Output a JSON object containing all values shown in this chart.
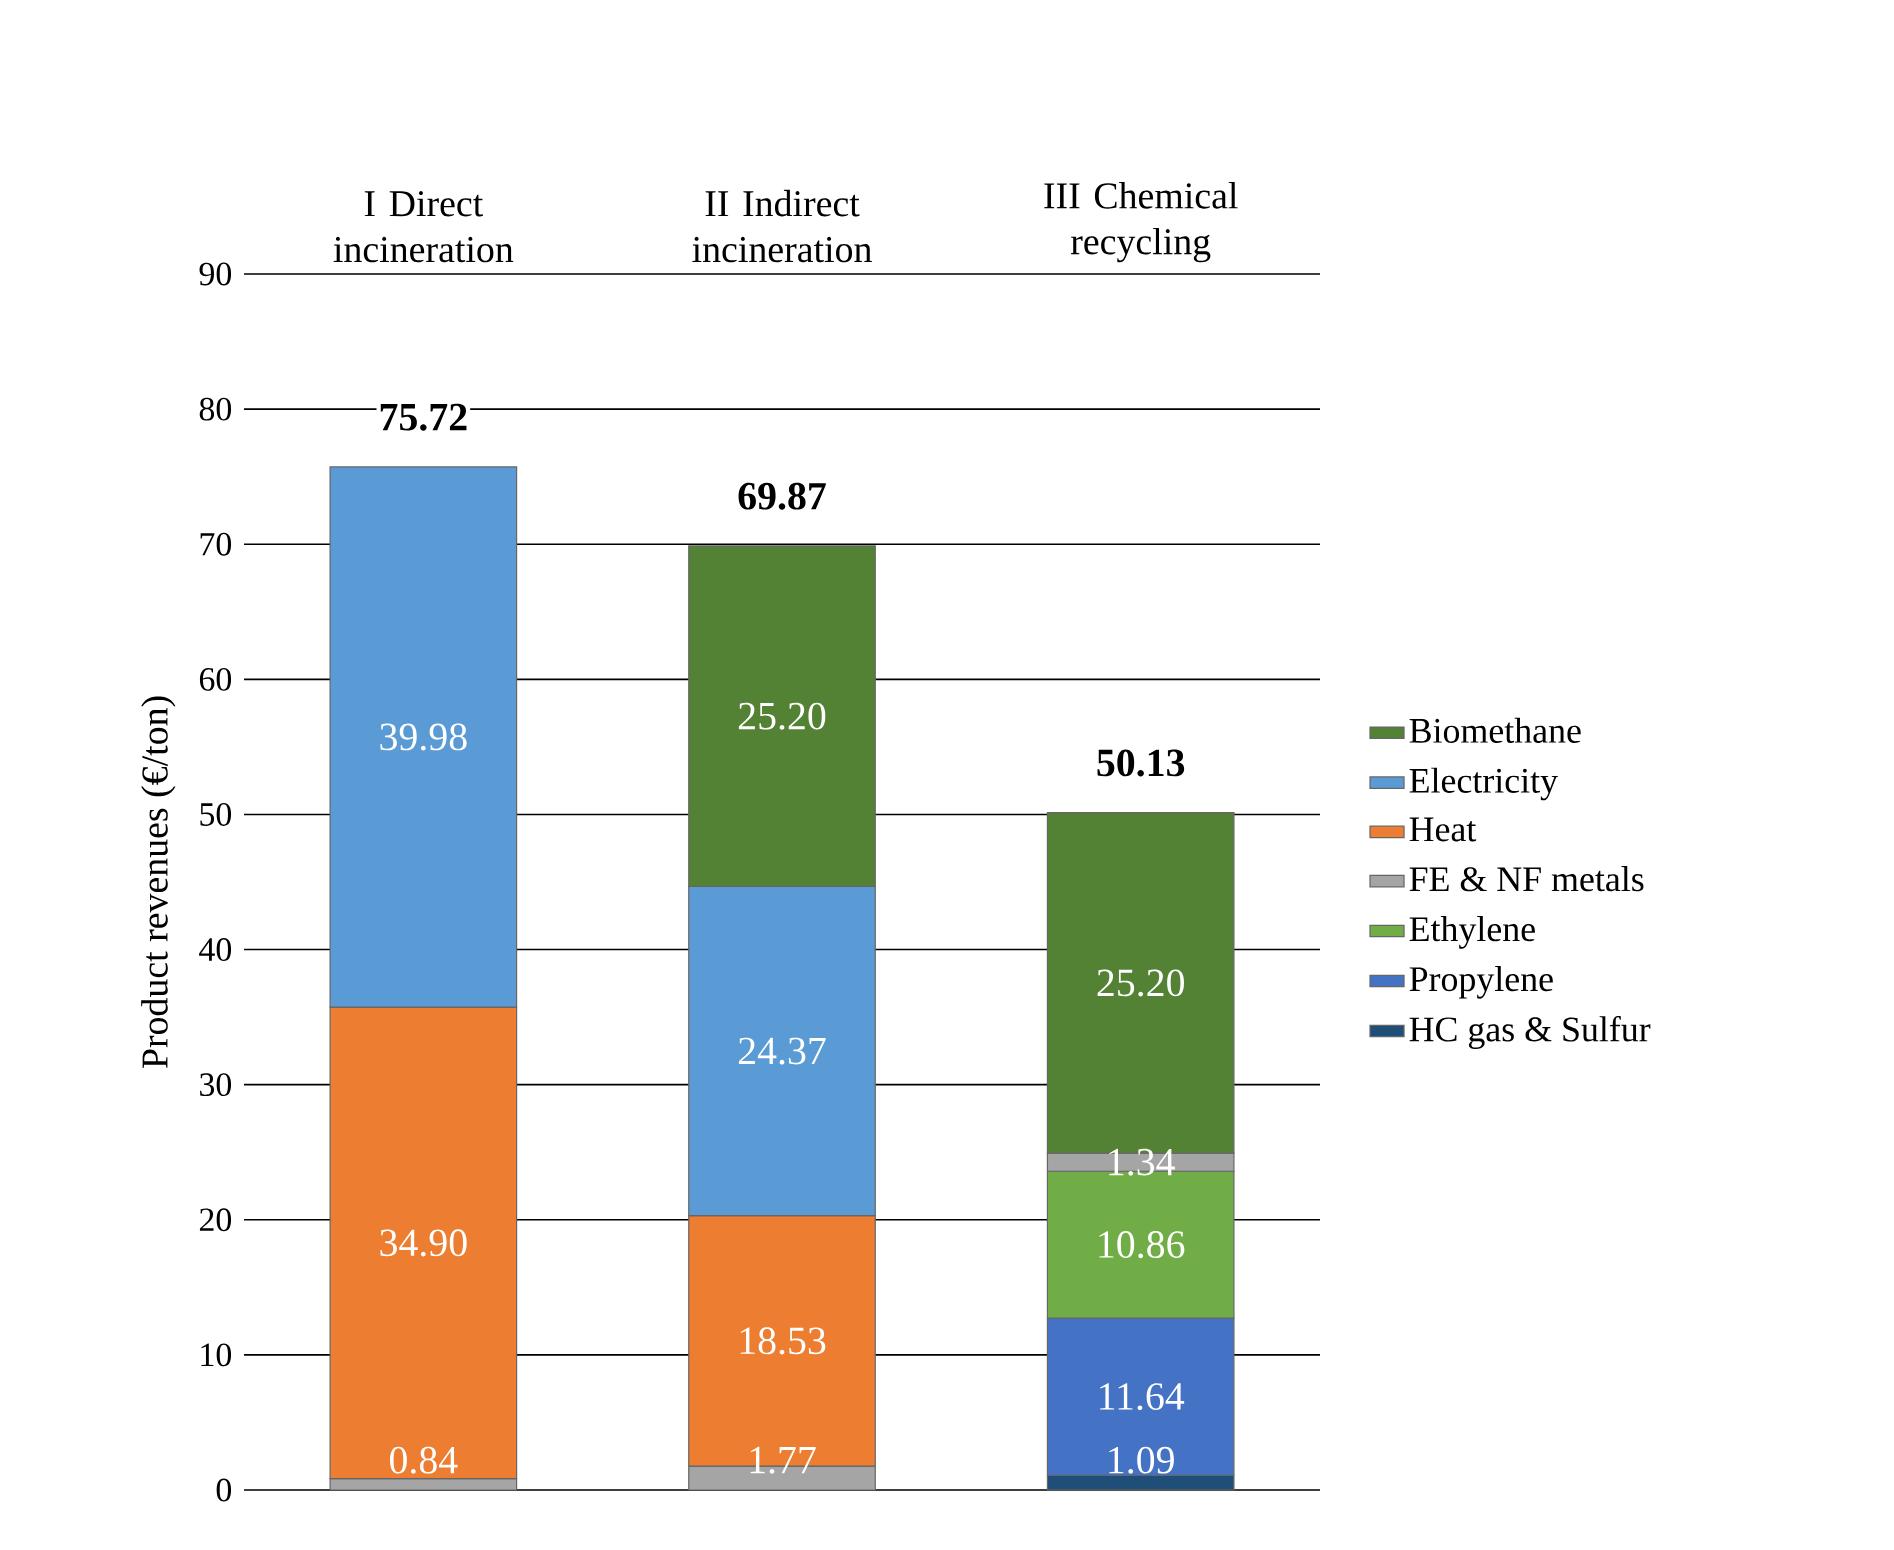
{
  "chart_data": {
    "type": "bar",
    "stacked": true,
    "categories": [
      "I Direct incineration",
      "II Indirect incineration",
      "III Chemical recycling"
    ],
    "ylabel": "Product revenues (€/ton)",
    "ylim": [
      0,
      90
    ],
    "yticks": [
      0,
      10,
      20,
      30,
      40,
      50,
      60,
      70,
      80,
      90
    ],
    "grid": "y",
    "legend": "right",
    "totals": [
      "75.72",
      "69.87",
      "50.13"
    ],
    "series": [
      {
        "name": "HC gas & Sulfur",
        "color": "#1f4e79",
        "values": [
          null,
          null,
          1.09
        ],
        "value_labels": [
          null,
          null,
          "1.09"
        ]
      },
      {
        "name": "Propylene",
        "color": "#4472c4",
        "values": [
          null,
          null,
          11.64
        ],
        "value_labels": [
          null,
          null,
          "11.64"
        ]
      },
      {
        "name": "Ethylene",
        "color": "#70ad47",
        "values": [
          null,
          null,
          10.86
        ],
        "value_labels": [
          null,
          null,
          "10.86"
        ]
      },
      {
        "name": "FE & NF metals",
        "color": "#a5a5a5",
        "values": [
          0.84,
          1.77,
          1.34
        ],
        "value_labels": [
          "0.84",
          "1.77",
          "1.34"
        ]
      },
      {
        "name": "Heat",
        "color": "#ed7d31",
        "values": [
          34.9,
          18.53,
          null
        ],
        "value_labels": [
          "34.90",
          "18.53",
          null
        ]
      },
      {
        "name": "Electricity",
        "color": "#5b9bd5",
        "values": [
          39.98,
          24.37,
          null
        ],
        "value_labels": [
          "39.98",
          "24.37",
          null
        ]
      },
      {
        "name": "Biomethane",
        "color": "#548235",
        "values": [
          null,
          25.2,
          25.2
        ],
        "value_labels": [
          null,
          "25.20",
          "25.20"
        ]
      }
    ]
  }
}
